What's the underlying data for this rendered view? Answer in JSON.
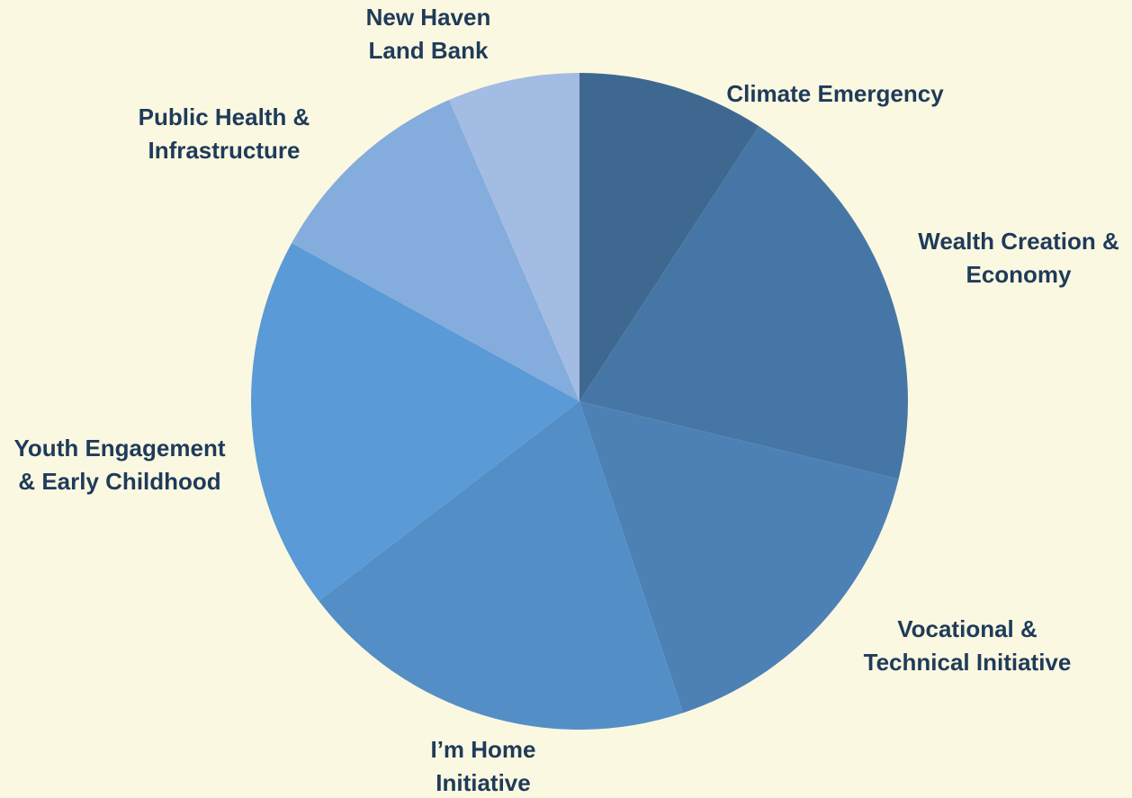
{
  "chart_data": {
    "type": "pie",
    "title": "",
    "start": "12 o'clock",
    "direction": "clockwise",
    "legend": "none",
    "slices": [
      {
        "label": "Climate Emergency",
        "value": 9.2,
        "color": "#3f6890"
      },
      {
        "label": "Wealth Creation & Economy",
        "value": 19.6,
        "color": "#4676a5"
      },
      {
        "label": "Vocational & Technical Initiative",
        "value": 16.1,
        "color": "#4d81b6"
      },
      {
        "label": "I’m Home Initiative",
        "value": 19.7,
        "color": "#548ec6"
      },
      {
        "label": "Youth Engagement & Early Childhood",
        "value": 18.4,
        "color": "#5a9ad6"
      },
      {
        "label": "Public Health & Infrastructure",
        "value": 10.5,
        "color": "#84acdc"
      },
      {
        "label": "New Haven Land Bank",
        "value": 6.5,
        "color": "#a2bce3"
      }
    ]
  },
  "labels": [
    {
      "lines": [
        "Climate Emergency"
      ]
    },
    {
      "lines": [
        "Wealth Creation &",
        "Economy"
      ]
    },
    {
      "lines": [
        "Vocational &",
        "Technical Initiative"
      ]
    },
    {
      "lines": [
        "I’m Home",
        "Initiative"
      ]
    },
    {
      "lines": [
        "Youth Engagement",
        "& Early Childhood"
      ]
    },
    {
      "lines": [
        "Public Health &",
        "Infrastructure"
      ]
    },
    {
      "lines": [
        "New Haven",
        "Land Bank"
      ]
    }
  ]
}
